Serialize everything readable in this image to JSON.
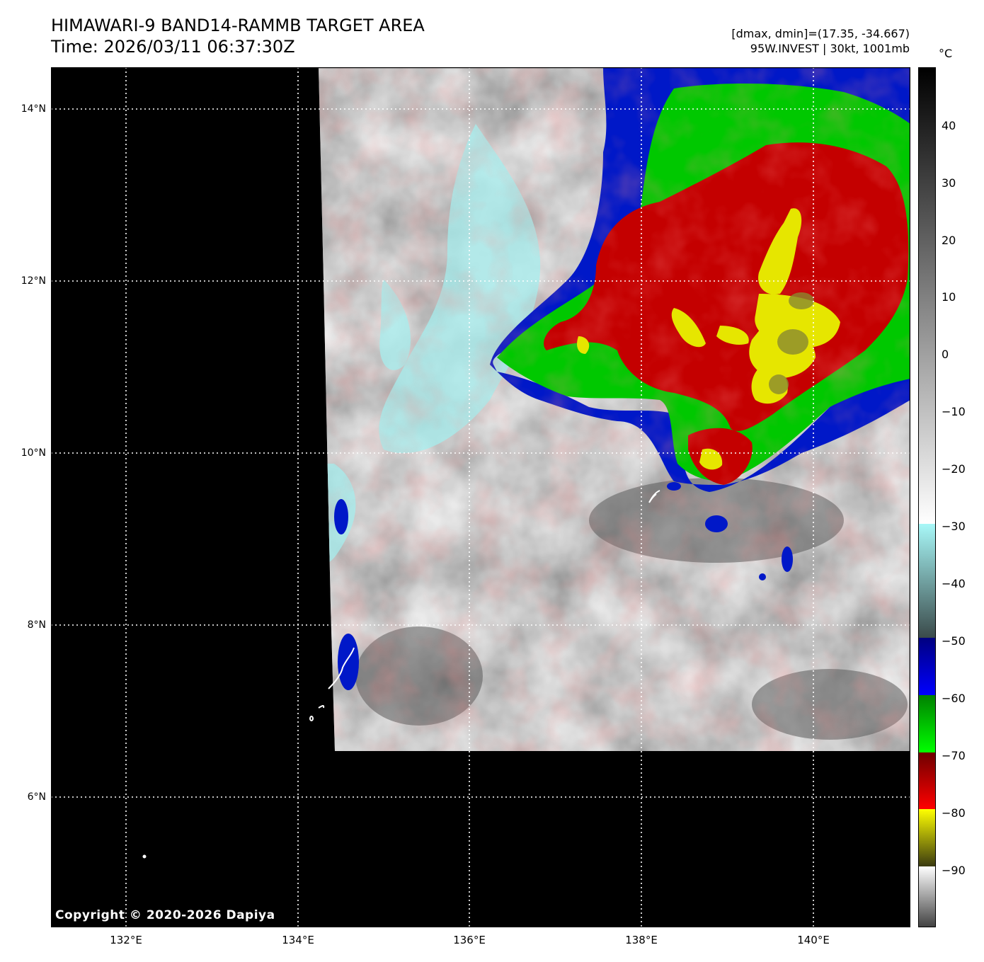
{
  "title": {
    "line1": "HIMAWARI-9 BAND14-RAMMB TARGET AREA",
    "line2": "Time: 2026/03/11 06:37:30Z"
  },
  "info": {
    "line1": "[dmax, dmin]=(17.35, -34.667)",
    "line2": "95W.INVEST | 30kt, 1001mb"
  },
  "colorbar": {
    "unit": "°C",
    "ticks": [
      "40",
      "30",
      "20",
      "10",
      "0",
      "−10",
      "−20",
      "−30",
      "−40",
      "−50",
      "−60",
      "−70",
      "−80",
      "−90"
    ]
  },
  "axes": {
    "lat_labels": [
      "14°N",
      "12°N",
      "10°N",
      "8°N",
      "6°N"
    ],
    "lon_labels": [
      "132°E",
      "134°E",
      "136°E",
      "138°E",
      "140°E"
    ]
  },
  "copyright": "Copyright © 2020-2026 Dapiya",
  "colors": {
    "background": "#000000",
    "clear_sky": "#d8d8d8",
    "cyan": "#a8f0f0",
    "blue": "#0000c8",
    "green": "#00c800",
    "red": "#c80000",
    "yellow": "#e6e600"
  }
}
